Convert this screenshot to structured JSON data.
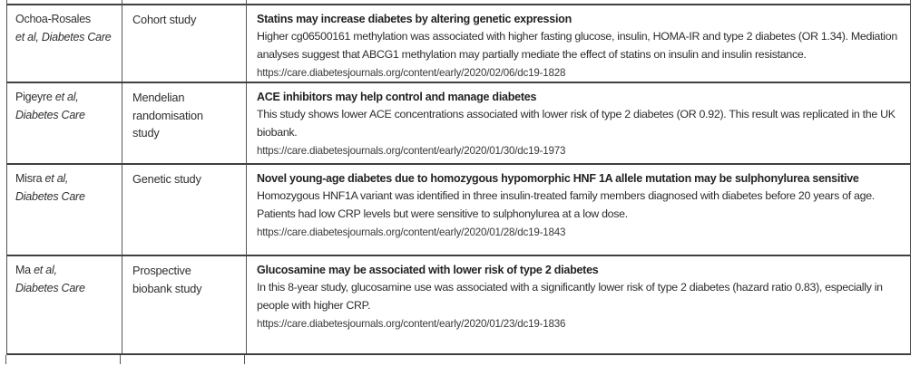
{
  "table": {
    "rows": [
      {
        "citation": {
          "name": "Ochoa-Rosales",
          "etal": "",
          "journal": "et al, Diabetes Care"
        },
        "study_type": "Cohort study",
        "summary": {
          "title": "Statins may increase diabetes by altering genetic expression",
          "body": "Higher cg06500161 methylation was associated with higher fasting glucose, insulin, HOMA-IR and type 2 diabetes (OR 1.34). Mediation analyses suggest that ABCG1 methylation may partially mediate the effect of statins on insulin and insulin resistance.",
          "url": "https://care.diabetesjournals.org/content/early/2020/02/06/dc19-1828"
        }
      },
      {
        "citation": {
          "name": "Pigeyre",
          "etal": "et al,",
          "journal": "Diabetes Care"
        },
        "study_type": "Mendelian randomisation study",
        "summary": {
          "title": "ACE inhibitors may help control and manage diabetes",
          "body": "This study shows lower ACE concentrations associated with lower risk of type 2 diabetes (OR 0.92). This result was replicated in the UK biobank.",
          "url": "https://care.diabetesjournals.org/content/early/2020/01/30/dc19-1973"
        }
      },
      {
        "citation": {
          "name": "Misra",
          "etal": "et al,",
          "journal": "Diabetes Care"
        },
        "study_type": "Genetic study",
        "summary": {
          "title": "Novel young-age diabetes due to homozygous hypomorphic HNF 1A allele mutation may be sulphonylurea sensitive",
          "body": "Homozygous HNF1A variant was identified in three insulin-treated family members diagnosed with diabetes before 20 years of age. Patients had low CRP levels but were sensitive to sulphonylurea at a low dose.",
          "url": "https://care.diabetesjournals.org/content/early/2020/01/28/dc19-1843"
        }
      },
      {
        "citation": {
          "name": "Ma",
          "etal": "et al,",
          "journal": "Diabetes Care"
        },
        "study_type": "Prospective biobank study",
        "summary": {
          "title": "Glucosamine may be associated with lower risk of type 2 diabetes",
          "body": "In this 8-year study, glucosamine use was associated with a significantly lower risk of type 2 diabetes (hazard ratio 0.83), especially in people with higher CRP.",
          "url": "https://care.diabetesjournals.org/content/early/2020/01/23/dc19-1836"
        }
      }
    ]
  }
}
